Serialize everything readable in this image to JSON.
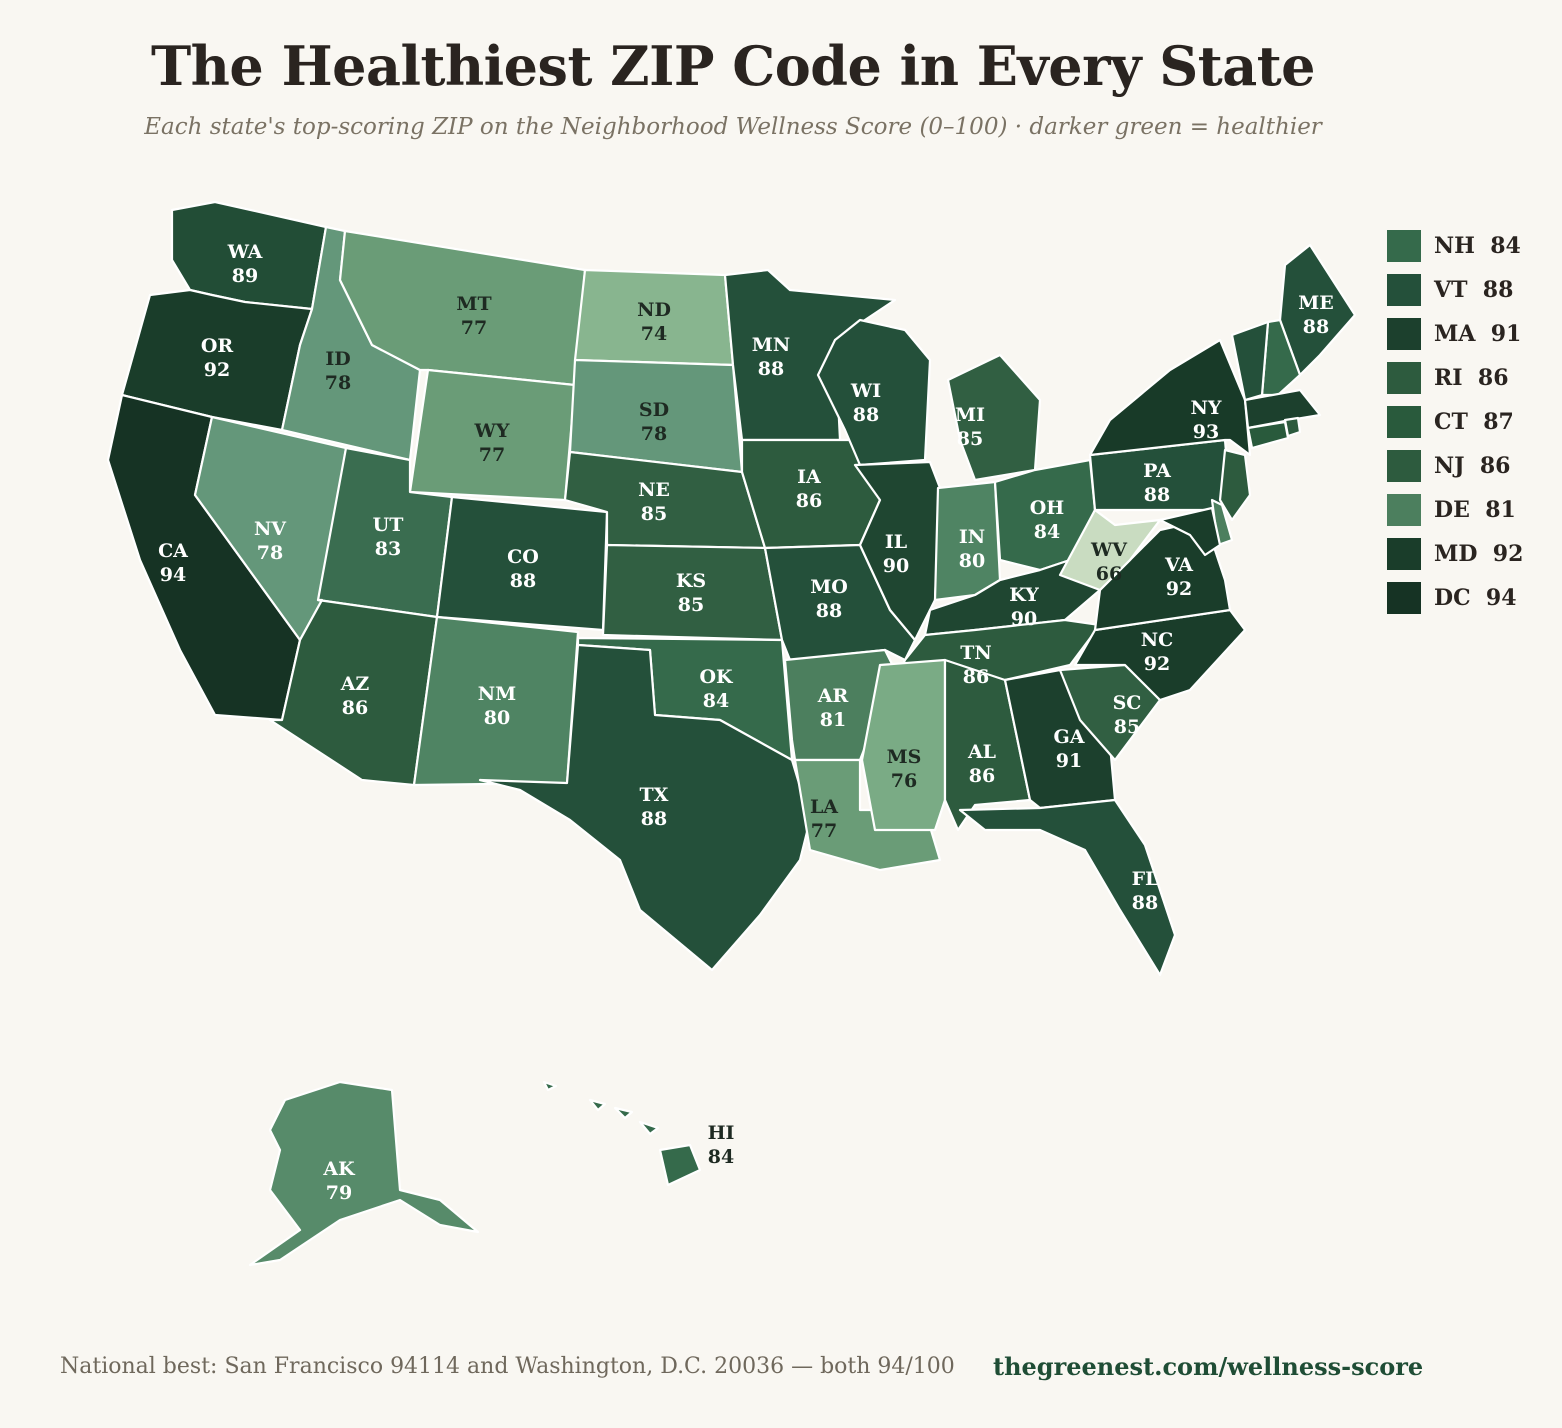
{
  "title": "The Healthiest ZIP Code in Every State",
  "subtitle": "Each state's top-scoring ZIP on the Neighborhood Wellness Score (0–100) · darker green = healthier",
  "footer": {
    "note": "National best: San Francisco 94114 and Washington, D.C. 20036 — both 94/100",
    "link": "thegreenest.com/wellness-score"
  },
  "colors": {
    "background": "#f9f7f2",
    "state_border": "#ffffff",
    "scale": {
      "66": "#c9dcc1",
      "74": "#88b58f",
      "76": "#7aab85",
      "77": "#6a9c77",
      "78": "#64977a",
      "79": "#578b6a",
      "80": "#4f8463",
      "81": "#4c7f5e",
      "83": "#3a6d50",
      "84": "#356a4b",
      "85": "#315f42",
      "86": "#2d5b3e",
      "87": "#295a3c",
      "88": "#24503a",
      "89": "#224d36",
      "90": "#1f4631",
      "91": "#1c402d",
      "92": "#1a3d2a",
      "93": "#183a28",
      "94": "#163324"
    }
  },
  "legend": [
    {
      "abbr": "NH",
      "score": "84"
    },
    {
      "abbr": "VT",
      "score": "88"
    },
    {
      "abbr": "MA",
      "score": "91"
    },
    {
      "abbr": "RI",
      "score": "86"
    },
    {
      "abbr": "CT",
      "score": "87"
    },
    {
      "abbr": "NJ",
      "score": "86"
    },
    {
      "abbr": "DE",
      "score": "81"
    },
    {
      "abbr": "MD",
      "score": "92"
    },
    {
      "abbr": "DC",
      "score": "94"
    }
  ],
  "states": [
    {
      "abbr": "WA",
      "score": "89"
    },
    {
      "abbr": "OR",
      "score": "92"
    },
    {
      "abbr": "CA",
      "score": "94"
    },
    {
      "abbr": "ID",
      "score": "78"
    },
    {
      "abbr": "NV",
      "score": "78"
    },
    {
      "abbr": "MT",
      "score": "77"
    },
    {
      "abbr": "WY",
      "score": "77"
    },
    {
      "abbr": "UT",
      "score": "83"
    },
    {
      "abbr": "AZ",
      "score": "86"
    },
    {
      "abbr": "CO",
      "score": "88"
    },
    {
      "abbr": "NM",
      "score": "80"
    },
    {
      "abbr": "ND",
      "score": "74"
    },
    {
      "abbr": "SD",
      "score": "78"
    },
    {
      "abbr": "NE",
      "score": "85"
    },
    {
      "abbr": "KS",
      "score": "85"
    },
    {
      "abbr": "OK",
      "score": "84"
    },
    {
      "abbr": "TX",
      "score": "88"
    },
    {
      "abbr": "MN",
      "score": "88"
    },
    {
      "abbr": "IA",
      "score": "86"
    },
    {
      "abbr": "MO",
      "score": "88"
    },
    {
      "abbr": "AR",
      "score": "81"
    },
    {
      "abbr": "LA",
      "score": "77"
    },
    {
      "abbr": "WI",
      "score": "88"
    },
    {
      "abbr": "IL",
      "score": "90"
    },
    {
      "abbr": "MI",
      "score": "85"
    },
    {
      "abbr": "IN",
      "score": "80"
    },
    {
      "abbr": "OH",
      "score": "84"
    },
    {
      "abbr": "KY",
      "score": "90"
    },
    {
      "abbr": "TN",
      "score": "86"
    },
    {
      "abbr": "MS",
      "score": "76"
    },
    {
      "abbr": "AL",
      "score": "86"
    },
    {
      "abbr": "GA",
      "score": "91"
    },
    {
      "abbr": "FL",
      "score": "88"
    },
    {
      "abbr": "SC",
      "score": "85"
    },
    {
      "abbr": "NC",
      "score": "92"
    },
    {
      "abbr": "VA",
      "score": "92"
    },
    {
      "abbr": "WV",
      "score": "66"
    },
    {
      "abbr": "PA",
      "score": "88"
    },
    {
      "abbr": "NY",
      "score": "93"
    },
    {
      "abbr": "ME",
      "score": "88"
    },
    {
      "abbr": "AK",
      "score": "79"
    },
    {
      "abbr": "HI",
      "score": "84"
    }
  ]
}
